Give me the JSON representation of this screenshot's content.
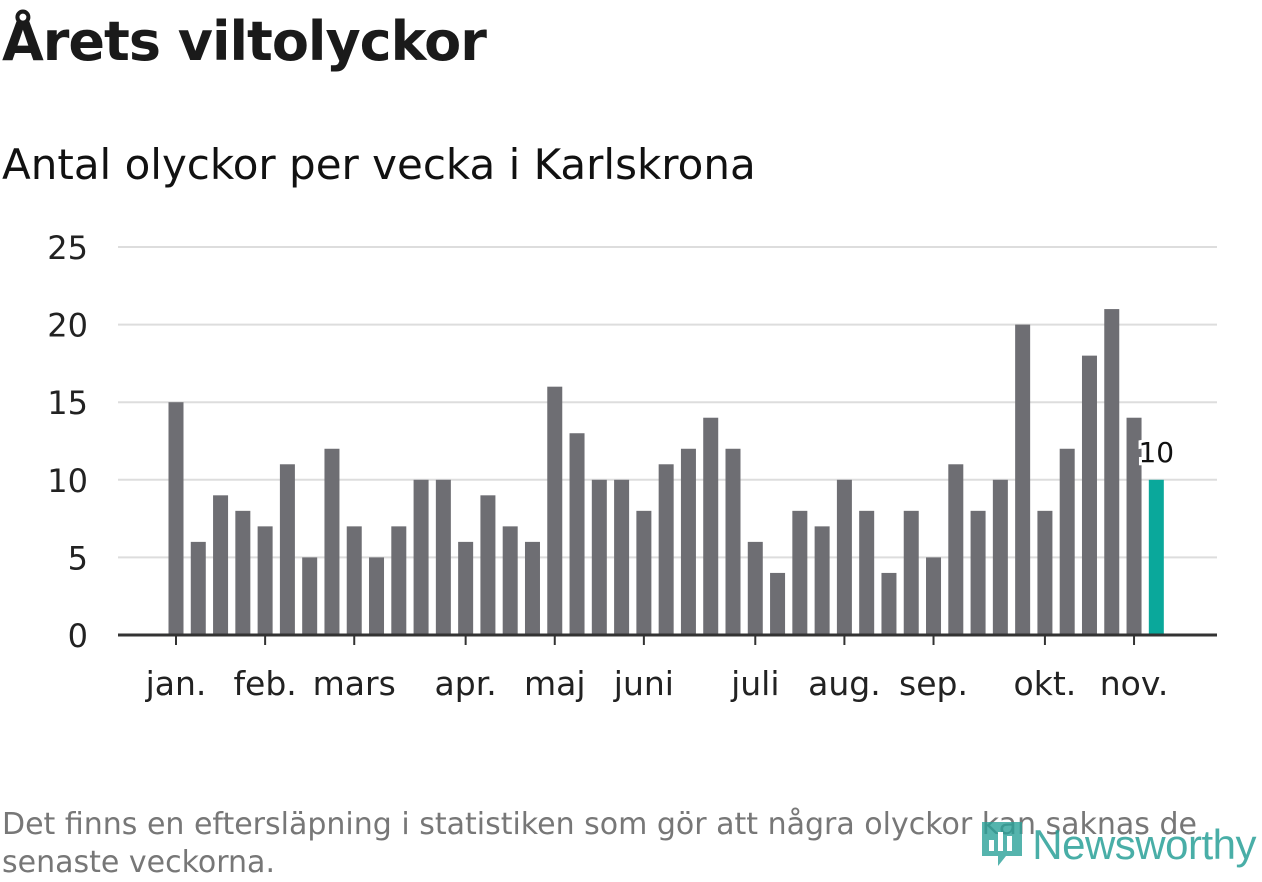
{
  "header": {
    "title": "Årets viltolyckor",
    "subtitle": "Antal olyckor per vecka i Karlskrona"
  },
  "footer": {
    "note": "Det finns en eftersläpning i statistiken som gör att några olyckor kan saknas de senaste veckorna.",
    "logo_text": "Newsworthy"
  },
  "colors": {
    "bar": "#6e6e73",
    "highlight": "#0aa89b",
    "grid": "#dddddd",
    "axis": "#333333"
  },
  "chart_data": {
    "type": "bar",
    "title": "Antal olyckor per vecka i Karlskrona",
    "xlabel": "",
    "ylabel": "",
    "ylim": [
      0,
      25
    ],
    "yticks": [
      0,
      5,
      10,
      15,
      20,
      25
    ],
    "values": [
      15,
      6,
      9,
      8,
      7,
      11,
      5,
      12,
      7,
      5,
      7,
      10,
      10,
      6,
      9,
      7,
      6,
      16,
      13,
      10,
      10,
      8,
      11,
      12,
      14,
      12,
      6,
      4,
      8,
      7,
      10,
      8,
      4,
      8,
      5,
      11,
      8,
      10,
      20,
      8,
      12,
      18,
      21,
      14,
      10
    ],
    "highlight_index": 44,
    "highlight_label": "10",
    "month_ticks": [
      {
        "label": "jan.",
        "week": 0
      },
      {
        "label": "feb.",
        "week": 4
      },
      {
        "label": "mars",
        "week": 8
      },
      {
        "label": "apr.",
        "week": 13
      },
      {
        "label": "maj",
        "week": 17
      },
      {
        "label": "juni",
        "week": 21
      },
      {
        "label": "juli",
        "week": 26
      },
      {
        "label": "aug.",
        "week": 30
      },
      {
        "label": "sep.",
        "week": 34
      },
      {
        "label": "okt.",
        "week": 39
      },
      {
        "label": "nov.",
        "week": 43
      }
    ],
    "grid": true
  }
}
